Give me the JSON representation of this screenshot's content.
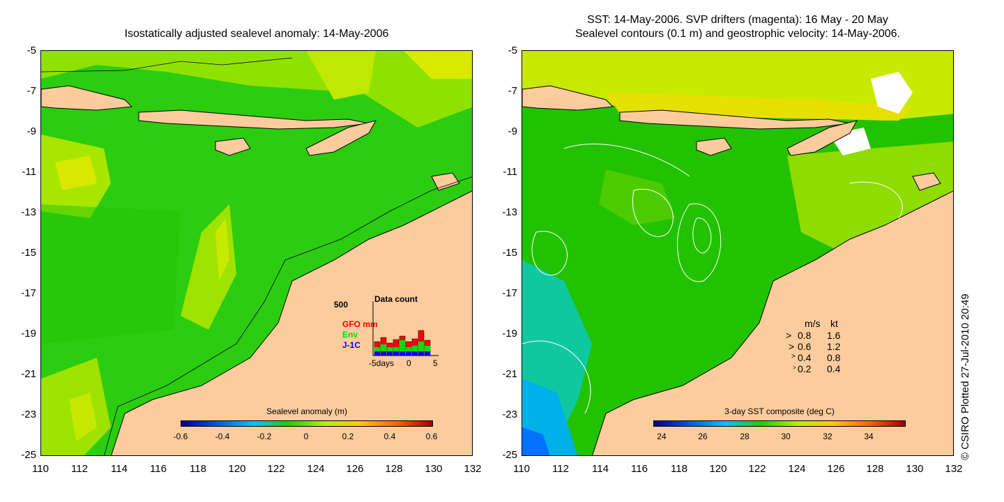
{
  "left": {
    "title": "Isostatically adjusted sealevel anomaly: 14-May-2006",
    "colorbar": {
      "title": "Sealevel anomaly (m)",
      "ticks": [
        "-0.6",
        "-0.4",
        "-0.2",
        "0",
        "0.2",
        "0.4",
        "0.6"
      ]
    },
    "inset": {
      "ymax": "500",
      "title": "Data count",
      "legend": [
        {
          "label": "GFO mm",
          "color": "#ff0000"
        },
        {
          "label": "Env",
          "color": "#00dd00"
        },
        {
          "label": "J-1C",
          "color": "#0000ff"
        }
      ],
      "xlabels": [
        "-5days",
        "0",
        "5"
      ]
    }
  },
  "right": {
    "title_line1": "SST: 14-May-2006. SVP drifters (magenta): 16 May - 20 May",
    "title_line2": "Sealevel contours (0.1 m) and geostrophic velocity: 14-May-2006.",
    "colorbar": {
      "title": "3-day SST composite (deg C)",
      "ticks": [
        "24",
        "26",
        "28",
        "30",
        "32",
        "34"
      ]
    },
    "velocity_legend": {
      "header_ms": "m/s",
      "header_kt": "kt",
      "rows": [
        {
          "ms": "0.8",
          "kt": "1.6"
        },
        {
          "ms": "0.6",
          "kt": "1.2"
        },
        {
          "ms": "0.4",
          "kt": "0.8"
        },
        {
          "ms": "0.2",
          "kt": "0.4"
        }
      ]
    }
  },
  "yticks": [
    "-5",
    "-7",
    "-9",
    "-11",
    "-13",
    "-15",
    "-17",
    "-19",
    "-21",
    "-23",
    "-25"
  ],
  "xticks": [
    "110",
    "112",
    "114",
    "116",
    "118",
    "120",
    "122",
    "124",
    "126",
    "128",
    "130",
    "132"
  ],
  "credit": "© CSIRO Plotted 27-Jul-2010 20:49",
  "colors": {
    "land": "#fccc9c",
    "ocean_green": "#22cc00",
    "ocean_yellow": "#bbee00"
  }
}
